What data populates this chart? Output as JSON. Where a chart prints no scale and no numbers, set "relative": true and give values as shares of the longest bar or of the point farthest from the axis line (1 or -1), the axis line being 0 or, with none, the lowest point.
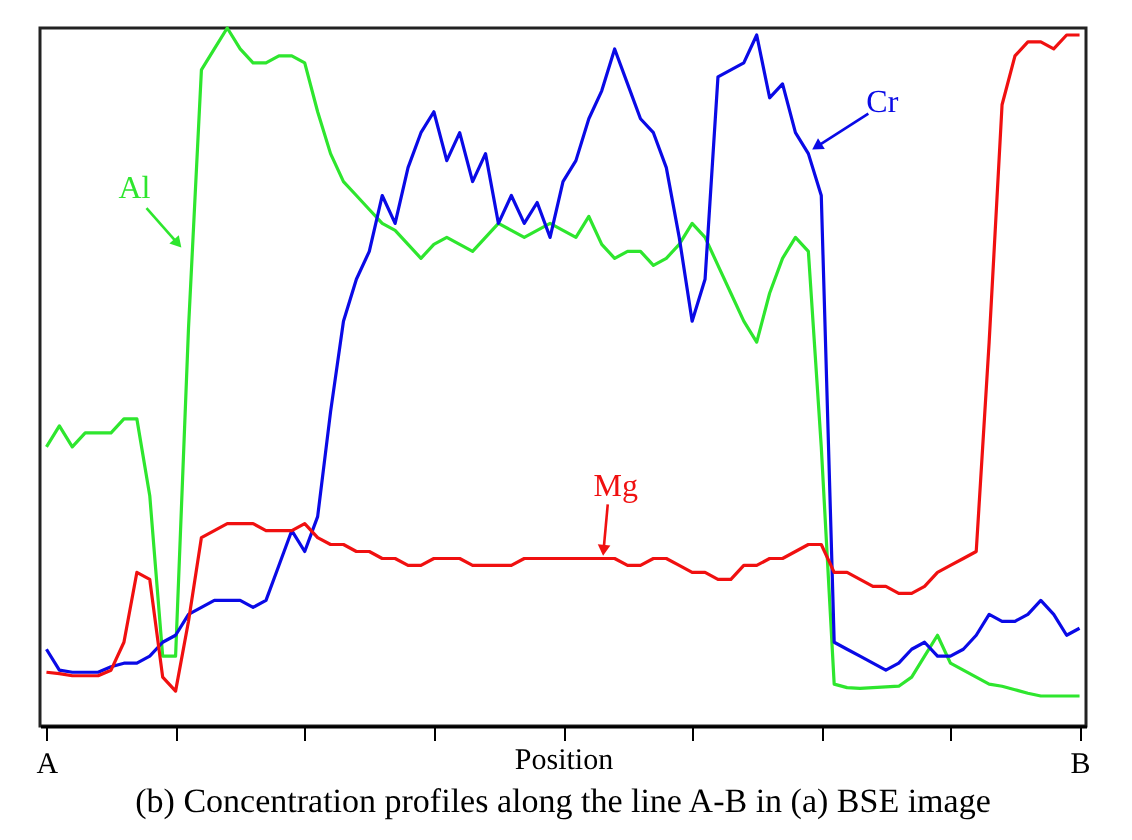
{
  "chart_data": {
    "type": "line",
    "relative": true,
    "title": "(b) Concentration profiles along the line A-B in (a) BSE image",
    "xlabel": "Position",
    "categories": [
      "A",
      null,
      null,
      null,
      null,
      null,
      null,
      null,
      null,
      null,
      null,
      null,
      null,
      null,
      null,
      null,
      null,
      null,
      null,
      null,
      null,
      null,
      null,
      null,
      null,
      null,
      null,
      null,
      null,
      null,
      null,
      null,
      null,
      null,
      null,
      null,
      null,
      null,
      null,
      null,
      null,
      null,
      null,
      null,
      null,
      null,
      null,
      null,
      null,
      null,
      null,
      null,
      null,
      null,
      null,
      null,
      null,
      null,
      null,
      null,
      null,
      null,
      null,
      null,
      null,
      null,
      null,
      null,
      null,
      null,
      null,
      null,
      null,
      null,
      null,
      null,
      null,
      null,
      null,
      null,
      "B"
    ],
    "series": [
      {
        "name": "Al",
        "color": "#2ee62e",
        "values": [
          0.4,
          0.43,
          0.4,
          0.42,
          0.42,
          0.42,
          0.44,
          0.44,
          0.33,
          0.1,
          0.1,
          0.57,
          0.94,
          0.97,
          1.0,
          0.97,
          0.95,
          0.95,
          0.96,
          0.96,
          0.95,
          0.88,
          0.82,
          0.78,
          0.76,
          0.74,
          0.72,
          0.71,
          0.69,
          0.67,
          0.69,
          0.7,
          0.69,
          0.68,
          0.7,
          0.72,
          0.71,
          0.7,
          0.71,
          0.72,
          0.71,
          0.7,
          0.73,
          0.69,
          0.67,
          0.68,
          0.68,
          0.66,
          0.67,
          0.69,
          0.72,
          0.7,
          0.66,
          0.62,
          0.58,
          0.55,
          0.62,
          0.67,
          0.7,
          0.68,
          0.4,
          0.06,
          0.055,
          0.054,
          0.055,
          0.056,
          0.057,
          0.07,
          0.1,
          0.13,
          0.09,
          0.08,
          0.07,
          0.06,
          0.057,
          0.052,
          0.047,
          0.043,
          0.043,
          0.043,
          0.043
        ]
      },
      {
        "name": "Cr",
        "color": "#0a0ae6",
        "values": [
          0.11,
          0.08,
          0.077,
          0.077,
          0.077,
          0.085,
          0.09,
          0.09,
          0.1,
          0.12,
          0.13,
          0.16,
          0.17,
          0.18,
          0.18,
          0.18,
          0.17,
          0.18,
          0.23,
          0.28,
          0.25,
          0.3,
          0.45,
          0.58,
          0.64,
          0.68,
          0.76,
          0.72,
          0.8,
          0.85,
          0.88,
          0.81,
          0.85,
          0.78,
          0.82,
          0.72,
          0.76,
          0.72,
          0.75,
          0.7,
          0.78,
          0.81,
          0.87,
          0.91,
          0.97,
          0.92,
          0.87,
          0.85,
          0.8,
          0.7,
          0.58,
          0.64,
          0.93,
          0.94,
          0.95,
          0.99,
          0.9,
          0.92,
          0.85,
          0.82,
          0.76,
          0.12,
          0.11,
          0.1,
          0.09,
          0.08,
          0.09,
          0.11,
          0.12,
          0.1,
          0.1,
          0.11,
          0.13,
          0.16,
          0.15,
          0.15,
          0.16,
          0.18,
          0.16,
          0.13,
          0.14
        ]
      },
      {
        "name": "Mg",
        "color": "#f01010",
        "values": [
          0.077,
          0.075,
          0.072,
          0.072,
          0.072,
          0.08,
          0.12,
          0.22,
          0.21,
          0.07,
          0.05,
          0.15,
          0.27,
          0.28,
          0.29,
          0.29,
          0.29,
          0.28,
          0.28,
          0.28,
          0.29,
          0.27,
          0.26,
          0.26,
          0.25,
          0.25,
          0.24,
          0.24,
          0.23,
          0.23,
          0.24,
          0.24,
          0.24,
          0.23,
          0.23,
          0.23,
          0.23,
          0.24,
          0.24,
          0.24,
          0.24,
          0.24,
          0.24,
          0.24,
          0.24,
          0.23,
          0.23,
          0.24,
          0.24,
          0.23,
          0.22,
          0.22,
          0.21,
          0.21,
          0.23,
          0.23,
          0.24,
          0.24,
          0.25,
          0.26,
          0.26,
          0.22,
          0.22,
          0.21,
          0.2,
          0.2,
          0.19,
          0.19,
          0.2,
          0.22,
          0.23,
          0.24,
          0.25,
          0.55,
          0.89,
          0.96,
          0.98,
          0.98,
          0.97,
          0.99,
          0.99
        ]
      }
    ]
  }
}
